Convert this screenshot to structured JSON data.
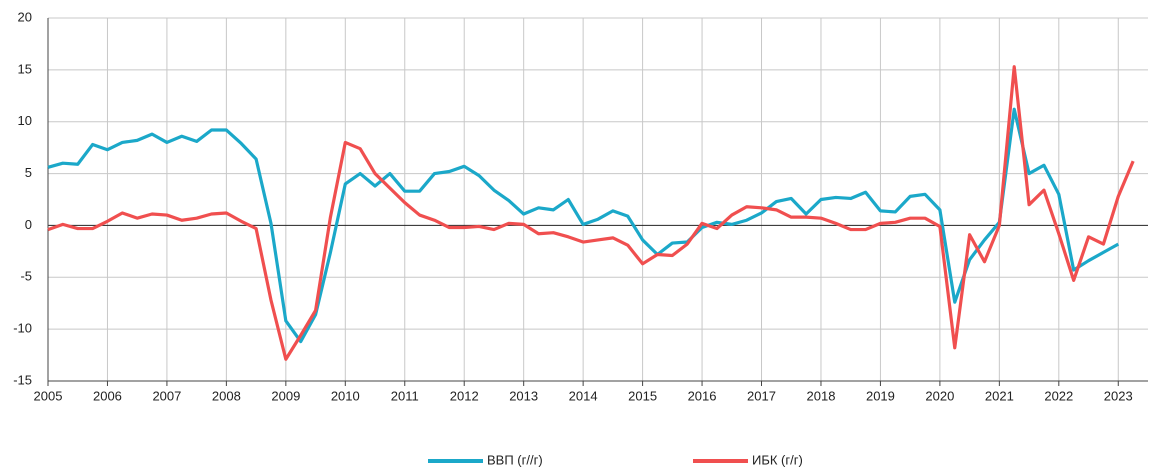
{
  "chart_data": {
    "type": "line",
    "xlim": [
      2005,
      2023.5
    ],
    "xticks": [
      2005,
      2006,
      2007,
      2008,
      2009,
      2010,
      2011,
      2012,
      2013,
      2014,
      2015,
      2016,
      2017,
      2018,
      2019,
      2020,
      2021,
      2022,
      2023
    ],
    "ylim": [
      -15,
      20
    ],
    "yticks": [
      -15,
      -10,
      -5,
      0,
      5,
      10,
      15,
      20
    ],
    "grid": true,
    "legend": "bottom",
    "series": [
      {
        "name": "ВВП (г//г)",
        "color": "#1ba8c9",
        "x": [
          2005,
          2005.25,
          2005.5,
          2005.75,
          2006,
          2006.25,
          2006.5,
          2006.75,
          2007,
          2007.25,
          2007.5,
          2007.75,
          2008,
          2008.25,
          2008.5,
          2008.75,
          2009,
          2009.25,
          2009.5,
          2009.75,
          2010,
          2010.25,
          2010.5,
          2010.75,
          2011,
          2011.25,
          2011.5,
          2011.75,
          2012,
          2012.25,
          2012.5,
          2012.75,
          2013,
          2013.25,
          2013.5,
          2013.75,
          2014,
          2014.25,
          2014.5,
          2014.75,
          2015,
          2015.25,
          2015.5,
          2015.75,
          2016,
          2016.25,
          2016.5,
          2016.75,
          2017,
          2017.25,
          2017.5,
          2017.75,
          2018,
          2018.25,
          2018.5,
          2018.75,
          2019,
          2019.25,
          2019.5,
          2019.75,
          2020,
          2020.25,
          2020.5,
          2020.75,
          2021,
          2021.25,
          2021.5,
          2021.75,
          2022,
          2022.25,
          2022.5,
          2022.75,
          2023
        ],
        "values": [
          5.6,
          6.0,
          5.9,
          7.8,
          7.3,
          8.0,
          8.2,
          8.8,
          8.0,
          8.6,
          8.1,
          9.2,
          9.2,
          7.9,
          6.4,
          0.2,
          -9.2,
          -11.2,
          -8.6,
          -2.6,
          4.0,
          5.0,
          3.8,
          5.0,
          3.3,
          3.3,
          5.0,
          5.2,
          5.7,
          4.8,
          3.4,
          2.4,
          1.1,
          1.7,
          1.5,
          2.5,
          0.1,
          0.6,
          1.4,
          0.9,
          -1.4,
          -2.8,
          -1.7,
          -1.6,
          -0.2,
          0.3,
          0.1,
          0.5,
          1.2,
          2.3,
          2.6,
          1.1,
          2.5,
          2.7,
          2.6,
          3.2,
          1.4,
          1.3,
          2.8,
          3.0,
          1.5,
          -7.4,
          -3.3,
          -1.4,
          0.3,
          11.2,
          5.0,
          5.8,
          3.0,
          -4.3,
          -3.4,
          -2.6,
          -1.8
        ]
      },
      {
        "name": "ИБК (г/г)",
        "color": "#f04f4f",
        "x": [
          2005,
          2005.25,
          2005.5,
          2005.75,
          2006,
          2006.25,
          2006.5,
          2006.75,
          2007,
          2007.25,
          2007.5,
          2007.75,
          2008,
          2008.25,
          2008.5,
          2008.75,
          2009,
          2009.25,
          2009.5,
          2009.75,
          2010,
          2010.25,
          2010.5,
          2010.75,
          2011,
          2011.25,
          2011.5,
          2011.75,
          2012,
          2012.25,
          2012.5,
          2012.75,
          2013,
          2013.25,
          2013.5,
          2013.75,
          2014,
          2014.25,
          2014.5,
          2014.75,
          2015,
          2015.25,
          2015.5,
          2015.75,
          2016,
          2016.25,
          2016.5,
          2016.75,
          2017,
          2017.25,
          2017.5,
          2017.75,
          2018,
          2018.25,
          2018.5,
          2018.75,
          2019,
          2019.25,
          2019.5,
          2019.75,
          2020,
          2020.25,
          2020.5,
          2020.75,
          2021,
          2021.25,
          2021.5,
          2021.75,
          2022,
          2022.25,
          2022.5,
          2022.75,
          2023,
          2023.25
        ],
        "values": [
          -0.4,
          0.1,
          -0.3,
          -0.3,
          0.4,
          1.2,
          0.7,
          1.1,
          1.0,
          0.5,
          0.7,
          1.1,
          1.2,
          0.4,
          -0.3,
          -7.2,
          -12.9,
          -10.6,
          -8.2,
          0.8,
          8.0,
          7.4,
          5.0,
          3.6,
          2.2,
          1.0,
          0.5,
          -0.2,
          -0.2,
          -0.1,
          -0.4,
          0.2,
          0.1,
          -0.8,
          -0.7,
          -1.1,
          -1.6,
          -1.4,
          -1.2,
          -1.9,
          -3.7,
          -2.8,
          -2.9,
          -1.8,
          0.2,
          -0.3,
          1.0,
          1.8,
          1.7,
          1.5,
          0.8,
          0.8,
          0.7,
          0.2,
          -0.4,
          -0.4,
          0.2,
          0.3,
          0.7,
          0.7,
          -0.1,
          -11.8,
          -0.9,
          -3.5,
          0.0,
          15.3,
          2.0,
          3.4,
          -0.8,
          -5.3,
          -1.1,
          -1.8,
          2.8,
          6.2
        ]
      }
    ]
  }
}
